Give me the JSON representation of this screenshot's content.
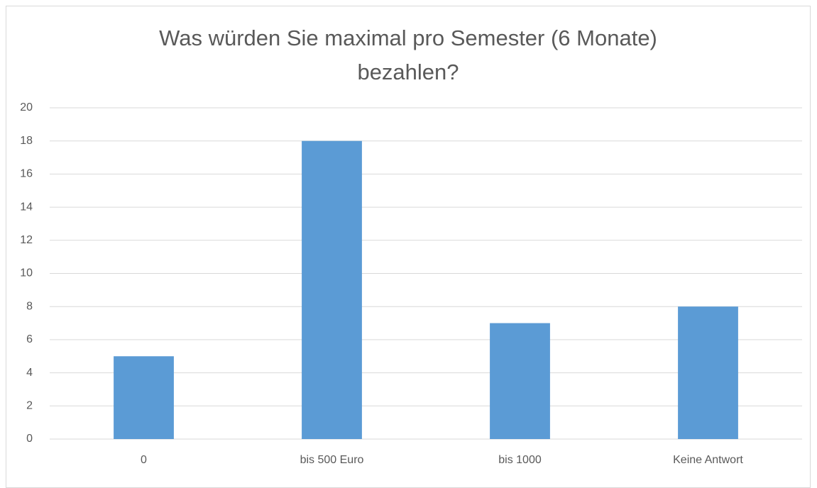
{
  "chart_data": {
    "type": "bar",
    "title": "Was würden Sie maximal pro Semester (6 Monate) bezahlen?",
    "categories": [
      "0",
      "bis 500 Euro",
      "bis 1000",
      "Keine Antwort"
    ],
    "values": [
      5,
      18,
      7,
      8
    ],
    "color": "#5b9bd5",
    "ylim": [
      0,
      20
    ],
    "yticks": [
      0,
      2,
      4,
      6,
      8,
      10,
      12,
      14,
      16,
      18,
      20
    ],
    "grid": true
  }
}
